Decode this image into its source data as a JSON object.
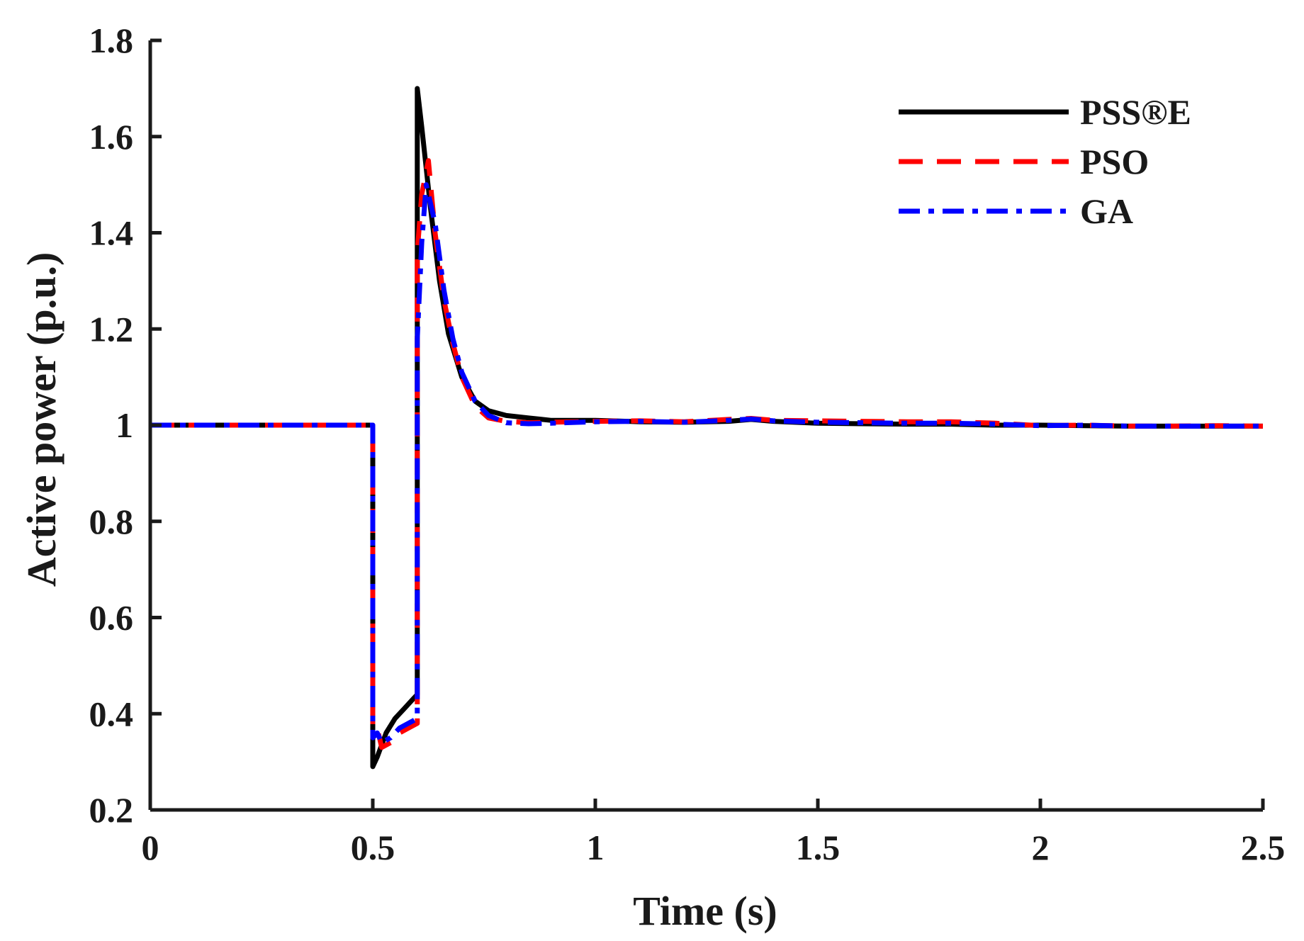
{
  "chart_data": {
    "type": "line",
    "title": "",
    "xlabel": "Time (s)",
    "ylabel": "Active power (p.u.)",
    "xlim": [
      0,
      2.5
    ],
    "ylim": [
      0.2,
      1.8
    ],
    "x_ticks": [
      0,
      0.5,
      1,
      1.5,
      2,
      2.5
    ],
    "x_tick_labels": [
      "0",
      "0.5",
      "1",
      "1.5",
      "2",
      "2.5"
    ],
    "y_ticks": [
      0.2,
      0.4,
      0.6,
      0.8,
      1.0,
      1.2,
      1.4,
      1.6,
      1.8
    ],
    "y_tick_labels": [
      "0.2",
      "0.4",
      "0.6",
      "0.8",
      "1",
      "1.2",
      "1.4",
      "1.6",
      "1.8"
    ],
    "grid": false,
    "legend_position": "top-right",
    "series": [
      {
        "name": "PSS®E",
        "color": "#000000",
        "style": "solid",
        "x": [
          0,
          0.5,
          0.5,
          0.51,
          0.53,
          0.55,
          0.57,
          0.59,
          0.6,
          0.6,
          0.61,
          0.63,
          0.65,
          0.67,
          0.7,
          0.73,
          0.76,
          0.8,
          0.85,
          0.9,
          1.0,
          1.1,
          1.2,
          1.3,
          1.35,
          1.4,
          1.5,
          1.6,
          1.7,
          1.8,
          1.9,
          2.0,
          2.1,
          2.2,
          2.3,
          2.4,
          2.5
        ],
        "y": [
          1.0,
          1.0,
          0.29,
          0.31,
          0.36,
          0.39,
          0.41,
          0.43,
          0.44,
          1.7,
          1.62,
          1.45,
          1.3,
          1.19,
          1.1,
          1.05,
          1.03,
          1.02,
          1.015,
          1.01,
          1.01,
          1.007,
          1.006,
          1.008,
          1.012,
          1.008,
          1.004,
          1.003,
          1.002,
          1.002,
          1.0,
          1.0,
          0.999,
          0.998,
          0.998,
          0.998,
          0.998
        ]
      },
      {
        "name": "PSO",
        "color": "#ff0000",
        "style": "dashed",
        "x": [
          0,
          0.5,
          0.5,
          0.51,
          0.52,
          0.54,
          0.56,
          0.58,
          0.6,
          0.6,
          0.61,
          0.625,
          0.64,
          0.66,
          0.68,
          0.7,
          0.73,
          0.76,
          0.8,
          0.85,
          0.9,
          1.0,
          1.1,
          1.2,
          1.3,
          1.35,
          1.4,
          1.5,
          1.6,
          1.7,
          1.8,
          1.9,
          2.0,
          2.1,
          2.2,
          2.3,
          2.4,
          2.5
        ],
        "y": [
          1.0,
          1.0,
          0.37,
          0.37,
          0.33,
          0.34,
          0.36,
          0.37,
          0.38,
          1.36,
          1.48,
          1.55,
          1.4,
          1.26,
          1.17,
          1.1,
          1.04,
          1.015,
          1.008,
          1.005,
          1.006,
          1.008,
          1.009,
          1.007,
          1.012,
          1.014,
          1.01,
          1.009,
          1.008,
          1.007,
          1.007,
          1.004,
          0.999,
          1.0,
          0.998,
          0.998,
          0.999,
          0.998
        ]
      },
      {
        "name": "GA",
        "color": "#0000ff",
        "style": "dashdot",
        "x": [
          0,
          0.5,
          0.5,
          0.51,
          0.52,
          0.54,
          0.56,
          0.58,
          0.6,
          0.6,
          0.61,
          0.62,
          0.64,
          0.66,
          0.68,
          0.7,
          0.73,
          0.76,
          0.8,
          0.85,
          0.9,
          1.0,
          1.1,
          1.2,
          1.3,
          1.35,
          1.4,
          1.5,
          1.6,
          1.7,
          1.8,
          1.9,
          2.0,
          2.1,
          2.2,
          2.3,
          2.4,
          2.5
        ],
        "y": [
          1.0,
          1.0,
          0.35,
          0.36,
          0.34,
          0.35,
          0.37,
          0.38,
          0.39,
          1.18,
          1.38,
          1.5,
          1.42,
          1.28,
          1.18,
          1.11,
          1.05,
          1.02,
          1.005,
          1.003,
          1.004,
          1.007,
          1.008,
          1.006,
          1.01,
          1.013,
          1.009,
          1.006,
          1.005,
          1.004,
          1.004,
          1.002,
          0.999,
          1.0,
          0.998,
          0.998,
          0.998,
          0.998
        ]
      }
    ]
  }
}
